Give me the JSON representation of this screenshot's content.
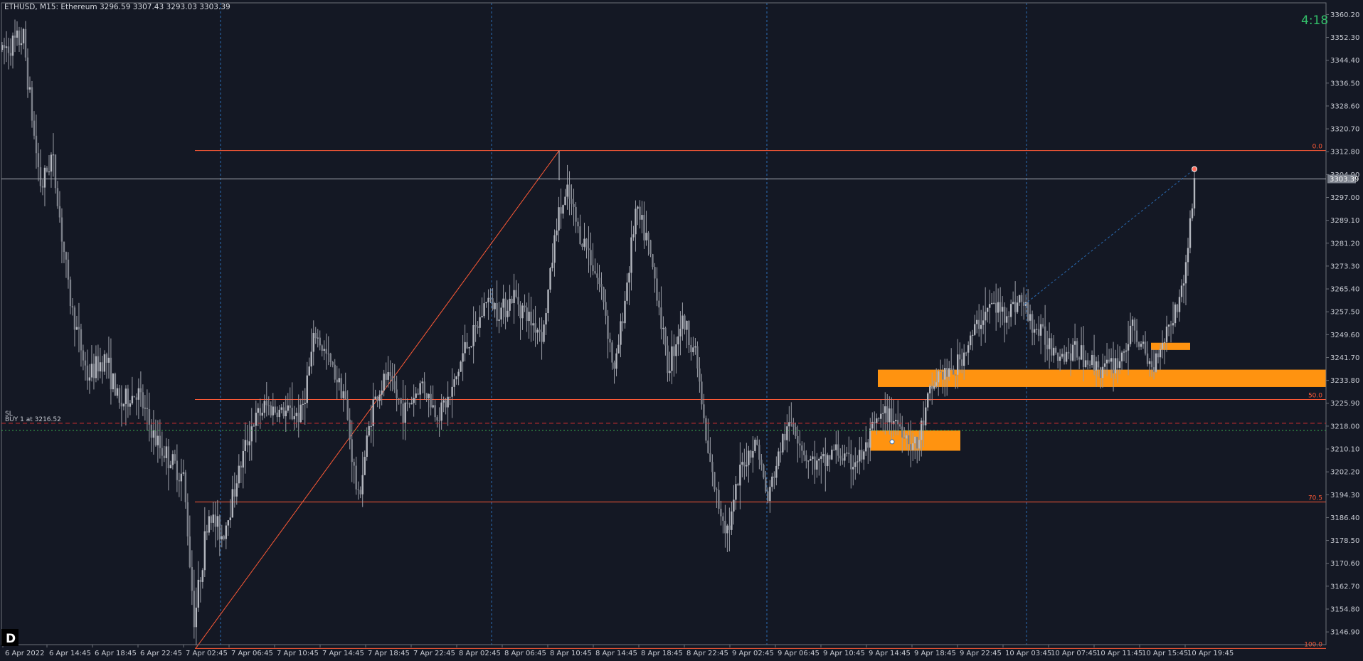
{
  "header": {
    "symbol_line": "ETHUSD, M15:  Ethereum  3296.59 3307.43 3293.03 3303.39"
  },
  "timer": "4:18",
  "corner_badge": "D",
  "current_price_label": "3303.39",
  "trade": {
    "sl_label": "SL",
    "buy_label": "BUY 1 at 3216.52",
    "sl_price": 3219.0,
    "buy_price": 3216.52
  },
  "fibonacci": {
    "levels": [
      {
        "label": "0.0",
        "price": 3313.2
      },
      {
        "label": "50.0",
        "price": 3227.2
      },
      {
        "label": "70.5",
        "price": 3191.8
      },
      {
        "label": "100.0",
        "price": 3141.2
      }
    ]
  },
  "colors": {
    "background": "#141824",
    "candle": "#9a9da6",
    "fib": "#ff5a36",
    "zone": "#ff9310",
    "grid": "#2a6bb3",
    "sl": "#d62f2f",
    "buy": "#39b04f",
    "timer": "#33c06a"
  },
  "chart_data": {
    "type": "candlestick",
    "symbol": "ETHUSD",
    "timeframe": "M15",
    "ohlc_last": {
      "open": 3296.59,
      "high": 3307.43,
      "low": 3293.03,
      "close": 3303.39
    },
    "y_ticks": [
      "3360.20",
      "3352.30",
      "3344.40",
      "3336.50",
      "3328.60",
      "3320.70",
      "3312.80",
      "3304.90",
      "3297.00",
      "3289.10",
      "3281.20",
      "3273.30",
      "3265.40",
      "3257.50",
      "3249.60",
      "3241.70",
      "3233.80",
      "3225.90",
      "3218.00",
      "3210.10",
      "3202.20",
      "3194.30",
      "3186.40",
      "3178.50",
      "3170.60",
      "3162.70",
      "3154.80",
      "3146.90"
    ],
    "x_ticks": [
      "6 Apr 2022",
      "6 Apr 14:45",
      "6 Apr 18:45",
      "6 Apr 22:45",
      "7 Apr 02:45",
      "7 Apr 06:45",
      "7 Apr 10:45",
      "7 Apr 14:45",
      "7 Apr 18:45",
      "7 Apr 22:45",
      "8 Apr 02:45",
      "8 Apr 06:45",
      "8 Apr 10:45",
      "8 Apr 14:45",
      "8 Apr 18:45",
      "8 Apr 22:45",
      "9 Apr 02:45",
      "9 Apr 06:45",
      "9 Apr 10:45",
      "9 Apr 14:45",
      "9 Apr 18:45",
      "9 Apr 22:45",
      "10 Apr 03:45",
      "10 Apr 07:45",
      "10 Apr 11:45",
      "10 Apr 15:45",
      "10 Apr 19:45"
    ],
    "ylim": [
      3143.0,
      3363.0
    ],
    "anchors": [
      [
        0,
        3348
      ],
      [
        30,
        3352
      ],
      [
        45,
        3318
      ],
      [
        55,
        3300
      ],
      [
        70,
        3312
      ],
      [
        95,
        3262
      ],
      [
        120,
        3235
      ],
      [
        145,
        3242
      ],
      [
        165,
        3225
      ],
      [
        190,
        3230
      ],
      [
        215,
        3213
      ],
      [
        240,
        3205
      ],
      [
        255,
        3200
      ],
      [
        270,
        3151
      ],
      [
        290,
        3188
      ],
      [
        310,
        3180
      ],
      [
        330,
        3200
      ],
      [
        350,
        3218
      ],
      [
        370,
        3225
      ],
      [
        390,
        3223
      ],
      [
        420,
        3222
      ],
      [
        440,
        3250
      ],
      [
        460,
        3240
      ],
      [
        480,
        3230
      ],
      [
        500,
        3192
      ],
      [
        520,
        3225
      ],
      [
        540,
        3235
      ],
      [
        565,
        3223
      ],
      [
        590,
        3233
      ],
      [
        610,
        3222
      ],
      [
        630,
        3228
      ],
      [
        650,
        3245
      ],
      [
        665,
        3250
      ],
      [
        680,
        3262
      ],
      [
        700,
        3258
      ],
      [
        720,
        3263
      ],
      [
        740,
        3255
      ],
      [
        760,
        3250
      ],
      [
        780,
        3290
      ],
      [
        795,
        3298
      ],
      [
        810,
        3285
      ],
      [
        825,
        3278
      ],
      [
        845,
        3262
      ],
      [
        860,
        3236
      ],
      [
        875,
        3262
      ],
      [
        890,
        3292
      ],
      [
        905,
        3283
      ],
      [
        920,
        3265
      ],
      [
        935,
        3238
      ],
      [
        955,
        3255
      ],
      [
        975,
        3243
      ],
      [
        990,
        3210
      ],
      [
        1005,
        3192
      ],
      [
        1020,
        3182
      ],
      [
        1040,
        3205
      ],
      [
        1060,
        3213
      ],
      [
        1075,
        3192
      ],
      [
        1095,
        3212
      ],
      [
        1110,
        3220
      ],
      [
        1130,
        3207
      ],
      [
        1150,
        3204
      ],
      [
        1170,
        3210
      ],
      [
        1190,
        3205
      ],
      [
        1210,
        3208
      ],
      [
        1230,
        3220
      ],
      [
        1250,
        3222
      ],
      [
        1270,
        3215
      ],
      [
        1285,
        3210
      ],
      [
        1300,
        3226
      ],
      [
        1315,
        3236
      ],
      [
        1335,
        3236
      ],
      [
        1355,
        3245
      ],
      [
        1375,
        3255
      ],
      [
        1390,
        3260
      ],
      [
        1410,
        3257
      ],
      [
        1430,
        3262
      ],
      [
        1450,
        3252
      ],
      [
        1470,
        3247
      ],
      [
        1490,
        3243
      ],
      [
        1510,
        3244
      ],
      [
        1530,
        3240
      ],
      [
        1550,
        3238
      ],
      [
        1570,
        3241
      ],
      [
        1590,
        3252
      ],
      [
        1600,
        3245
      ],
      [
        1615,
        3238
      ],
      [
        1630,
        3248
      ],
      [
        1648,
        3258
      ],
      [
        1658,
        3265
      ],
      [
        1668,
        3285
      ],
      [
        1675,
        3303
      ]
    ]
  }
}
